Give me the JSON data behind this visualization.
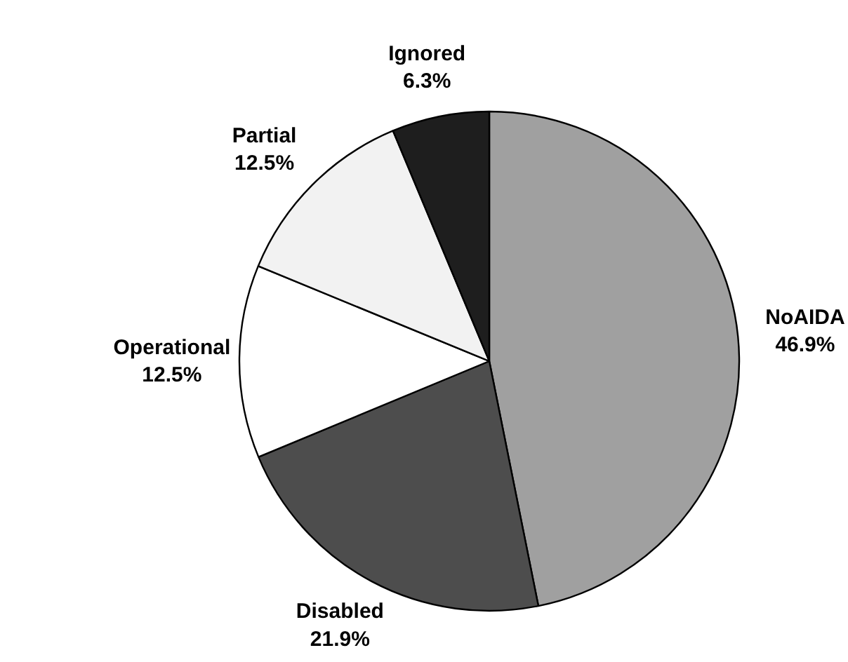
{
  "chart_data": {
    "type": "pie",
    "categories": [
      "NoAIDA",
      "Disabled",
      "Operational",
      "Partial",
      "Ignored"
    ],
    "values": [
      46.9,
      21.9,
      12.5,
      12.5,
      6.3
    ],
    "colors": [
      "#a0a0a0",
      "#4d4d4d",
      "#ffffff",
      "#f2f2f2",
      "#1e1e1e"
    ],
    "value_labels": [
      "46.9%",
      "21.9%",
      "12.5%",
      "12.5%",
      "6.3%"
    ]
  }
}
